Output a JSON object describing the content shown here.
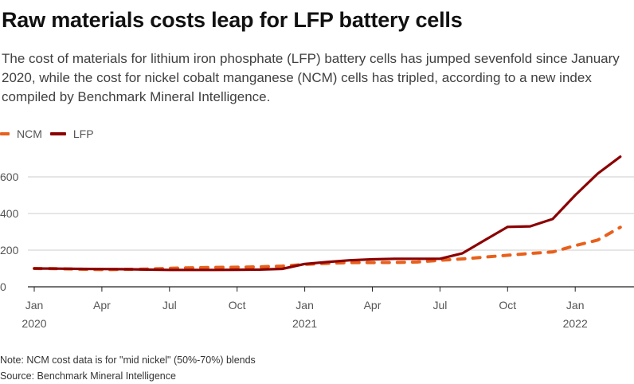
{
  "title": "Raw materials costs leap for LFP battery cells",
  "subtitle": "The cost of materials for lithium iron phosphate (LFP) battery cells has jumped sevenfold since January 2020, while the cost for nickel cobalt manganese (NCM) cells has tripled, according to a new index compiled by Benchmark Mineral Intelligence.",
  "note": "Note: NCM cost data is for \"mid nickel\" (50%-70%) blends",
  "source": "Source: Benchmark Mineral Intelligence",
  "colors": {
    "ncm": "#e8601c",
    "lfp": "#8b0000",
    "grid": "#cccccc",
    "axis": "#222222"
  },
  "chart_data": {
    "type": "line",
    "title": "Raw materials costs leap for LFP battery cells",
    "xlabel": "",
    "ylabel": "",
    "ylim": [
      0,
      700
    ],
    "yticks": [
      0,
      200,
      400,
      600
    ],
    "grid": true,
    "legend_position": "top-left",
    "x_months": [
      "2020-01",
      "2020-02",
      "2020-03",
      "2020-04",
      "2020-05",
      "2020-06",
      "2020-07",
      "2020-08",
      "2020-09",
      "2020-10",
      "2020-11",
      "2020-12",
      "2021-01",
      "2021-02",
      "2021-03",
      "2021-04",
      "2021-05",
      "2021-06",
      "2021-07",
      "2021-08",
      "2021-09",
      "2021-10",
      "2021-11",
      "2021-12",
      "2022-01",
      "2022-02",
      "2022-03"
    ],
    "xticks": [
      {
        "month": "2020-01",
        "label": "Jan",
        "year": "2020"
      },
      {
        "month": "2020-04",
        "label": "Apr",
        "year": ""
      },
      {
        "month": "2020-07",
        "label": "Jul",
        "year": ""
      },
      {
        "month": "2020-10",
        "label": "Oct",
        "year": ""
      },
      {
        "month": "2021-01",
        "label": "Jan",
        "year": "2021"
      },
      {
        "month": "2021-04",
        "label": "Apr",
        "year": ""
      },
      {
        "month": "2021-07",
        "label": "Jul",
        "year": ""
      },
      {
        "month": "2021-10",
        "label": "Oct",
        "year": ""
      },
      {
        "month": "2022-01",
        "label": "Jan",
        "year": "2022"
      }
    ],
    "series": [
      {
        "name": "NCM",
        "style": "dashed",
        "values": [
          100,
          99,
          96,
          94,
          95,
          97,
          101,
          104,
          106,
          107,
          109,
          113,
          122,
          128,
          132,
          132,
          133,
          135,
          145,
          152,
          162,
          172,
          182,
          190,
          225,
          255,
          325
        ]
      },
      {
        "name": "LFP",
        "style": "solid",
        "values": [
          100,
          99,
          98,
          97,
          96,
          94,
          92,
          92,
          92,
          93,
          94,
          98,
          125,
          135,
          145,
          150,
          153,
          153,
          153,
          183,
          255,
          327,
          330,
          370,
          500,
          618,
          710
        ]
      }
    ]
  }
}
